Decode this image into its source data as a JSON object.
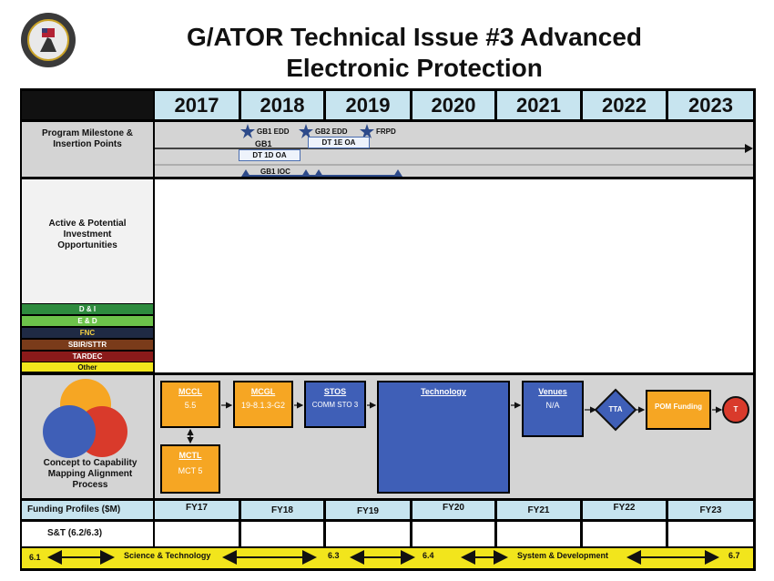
{
  "title": {
    "line1": "G/ATOR Technical Issue #3 Advanced",
    "line2": "Electronic Protection"
  },
  "years": [
    "2017",
    "2018",
    "2019",
    "2020",
    "2021",
    "2022",
    "2023"
  ],
  "rows": {
    "milestone": "Program Milestone & Insertion Points",
    "investment": "Active & Potential Investment Opportunities",
    "capability": "Concept to Capability Mapping Alignment Process",
    "funding": "Funding Profiles ($M)",
    "st": "S&T (6.2/6.3)"
  },
  "milestones": {
    "gb1_edd": "GB1 EDD",
    "gb2_edd": "GB2 EDD",
    "frpd": "FRPD",
    "gb1": "GB1",
    "dt1d": "DT 1D OA",
    "dt1e": "DT 1E OA",
    "gb1_ioc": "GB1 IOC"
  },
  "legend": [
    {
      "label": "D & I",
      "color": "#2e8b3e",
      "text": "#ffffff"
    },
    {
      "label": "E & D",
      "color": "#6cc24a",
      "text": "#ffffff"
    },
    {
      "label": "FNC",
      "color": "#1f2a44",
      "text": "#f5d142"
    },
    {
      "label": "SBIR/STTR",
      "color": "#7a3b1a",
      "text": "#ffffff"
    },
    {
      "label": "TARDEC",
      "color": "#8b1a1a",
      "text": "#ffffff"
    },
    {
      "label": "Other",
      "color": "#f2e51c",
      "text": "#111111"
    }
  ],
  "process": {
    "mccl": {
      "title": "MCCL",
      "text": "5.5"
    },
    "mcgl": {
      "title": "MCGL",
      "text": "19-8.1.3-G2"
    },
    "stos": {
      "title": "STOS",
      "text": "COMM STO 3"
    },
    "technology": {
      "title": "Technology",
      "text": ""
    },
    "venues": {
      "title": "Venues",
      "text": "N/A"
    },
    "tta": "TTA",
    "pom": "POM Funding",
    "t": "T",
    "mctl": {
      "title": "MCTL",
      "text": "MCT 5"
    }
  },
  "fy": [
    "FY17",
    "FY18",
    "FY19",
    "FY20",
    "FY21",
    "FY22",
    "FY23"
  ],
  "bottom": {
    "b61": "6.1",
    "st": "Science & Technology",
    "b63": "6.3",
    "b64": "6.4",
    "sd": "System & Development",
    "b67": "6.7"
  },
  "colors": {
    "orange": "#f6a623",
    "blue": "#3f5fb7",
    "red": "#d93a2b",
    "yellow": "#f2e51c",
    "header": "#c7e4ef"
  }
}
